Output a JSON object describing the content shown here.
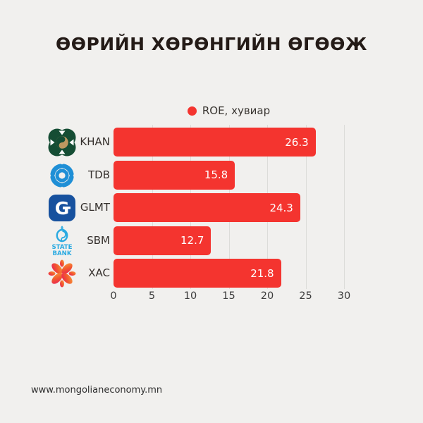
{
  "page": {
    "background": "#f1f0ee"
  },
  "header": {
    "title": "ӨӨРИЙН ХӨРӨНГИЙН ӨГӨӨЖ"
  },
  "legend": {
    "label": "ROE, хувиар",
    "marker_color": "#f4342f"
  },
  "footer": {
    "website": "www.mongolianeconomy.mn"
  },
  "chart_data": {
    "type": "bar",
    "orientation": "horizontal",
    "title": "ӨӨРИЙН ХӨРӨНГИЙН ӨГӨӨЖ",
    "categories": [
      "KHAN",
      "TDB",
      "GLMT",
      "SBM",
      "XAC"
    ],
    "category_icons": [
      "khan-bank-icon",
      "tdb-bank-icon",
      "golomt-bank-icon",
      "state-bank-icon",
      "xac-bank-icon"
    ],
    "series": [
      {
        "name": "ROE, хувиар",
        "values": [
          26.3,
          15.8,
          24.3,
          12.7,
          21.8
        ]
      }
    ],
    "value_labels": [
      "26.3",
      "15.8",
      "24.3",
      "12.7",
      "21.8"
    ],
    "xlabel": "",
    "ylabel": "",
    "xlim": [
      0,
      30
    ],
    "x_ticks": [
      "0",
      "5",
      "10",
      "15",
      "20",
      "25",
      "30"
    ],
    "grid": true,
    "legend_position": "top-center",
    "bar_color": "#f4342f",
    "value_label_color": "#ffffff"
  }
}
